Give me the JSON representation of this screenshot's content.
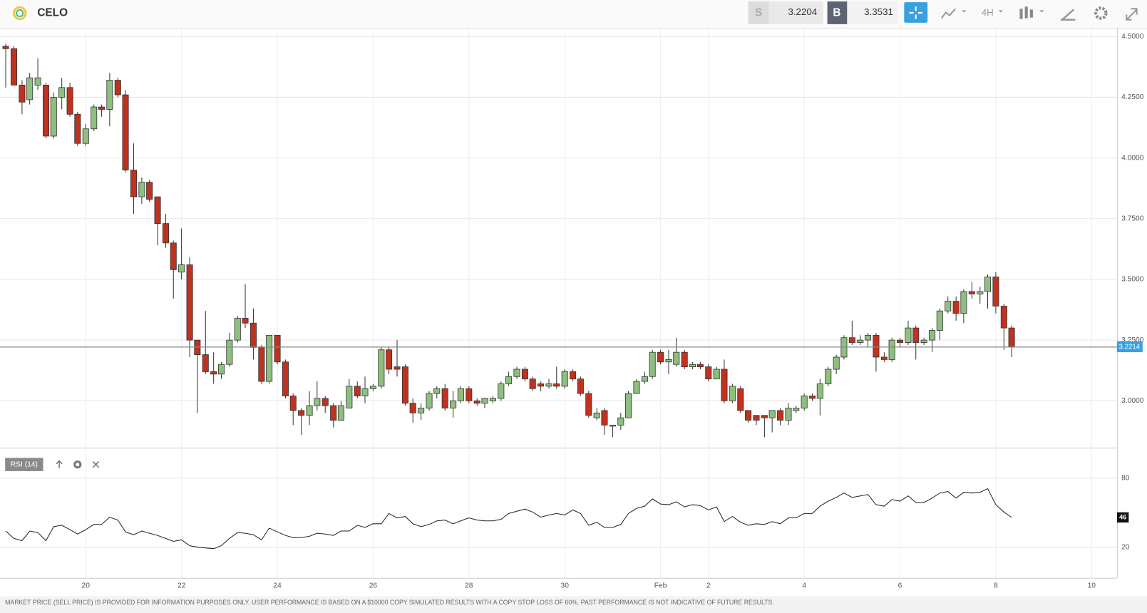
{
  "header": {
    "symbol": "CELO",
    "sell_label": "S",
    "sell": 3.2204,
    "buy_label": "B",
    "buy": 3.3531,
    "timeframe": "4H"
  },
  "chart_data": [
    {
      "type": "candlestick",
      "up_color": "#8dc07f",
      "down_color": "#c0321f",
      "x": [
        18.33,
        18.5,
        18.67,
        18.83,
        19,
        19.17,
        19.33,
        19.5,
        19.67,
        19.83,
        20,
        20.17,
        20.33,
        20.5,
        20.67,
        20.83,
        21,
        21.17,
        21.33,
        21.5,
        21.67,
        21.83,
        22,
        22.17,
        22.33,
        22.5,
        22.67,
        22.83,
        23,
        23.17,
        23.33,
        23.5,
        23.67,
        23.83,
        24,
        24.17,
        24.33,
        24.5,
        24.67,
        24.83,
        25,
        25.17,
        25.33,
        25.5,
        25.67,
        25.83,
        26,
        26.17,
        26.33,
        26.5,
        26.67,
        26.83,
        27,
        27.17,
        27.33,
        27.5,
        27.67,
        27.83,
        28,
        28.17,
        28.33,
        28.5,
        28.67,
        28.83,
        29,
        29.17,
        29.33,
        29.5,
        29.67,
        29.83,
        30,
        30.17,
        30.33,
        30.5,
        30.67,
        30.83,
        31,
        31.17,
        31.33,
        31.5,
        31.67,
        31.83,
        32,
        32.17,
        32.33,
        32.5,
        32.67,
        32.83,
        33,
        33.17,
        33.33,
        33.5,
        33.67,
        33.83,
        34,
        34.17,
        34.33,
        34.5,
        34.67,
        34.83,
        35,
        35.17,
        35.33,
        35.5,
        35.67,
        35.83,
        36,
        36.17,
        36.33,
        36.5,
        36.67,
        36.83,
        37,
        37.17,
        37.33,
        37.5,
        37.67,
        37.83,
        38,
        38.17,
        38.33,
        38.5,
        38.67,
        38.83,
        39,
        39.17,
        39.33
      ],
      "open": [
        4.46,
        4.45,
        4.3,
        4.24,
        4.3,
        4.3,
        4.09,
        4.25,
        4.29,
        4.18,
        4.06,
        4.12,
        4.21,
        4.2,
        4.32,
        4.26,
        3.95,
        3.84,
        3.9,
        3.84,
        3.73,
        3.65,
        3.53,
        3.56,
        3.25,
        3.19,
        3.12,
        3.11,
        3.15,
        3.25,
        3.34,
        3.32,
        3.22,
        3.08,
        3.27,
        3.16,
        3.02,
        2.96,
        2.94,
        2.98,
        3.01,
        2.98,
        2.92,
        2.97,
        3.06,
        3.02,
        3.05,
        3.06,
        3.21,
        3.14,
        3.14,
        2.99,
        2.95,
        2.97,
        3.03,
        3.05,
        2.97,
        3.0,
        3.05,
        3.0,
        2.99,
        3.0,
        3.01,
        3.07,
        3.1,
        3.13,
        3.09,
        3.07,
        3.06,
        3.07,
        3.06,
        3.12,
        3.09,
        3.03,
        2.93,
        2.96,
        2.9,
        2.9,
        2.93,
        3.03,
        3.08,
        3.1,
        3.2,
        3.16,
        3.15,
        3.2,
        3.14,
        3.15,
        3.14,
        3.09,
        3.13,
        3.0,
        3.05,
        2.96,
        2.94,
        2.94,
        2.93,
        2.96,
        2.92,
        2.96,
        2.97,
        3.02,
        3.01,
        3.07,
        3.13,
        3.18,
        3.26,
        3.24,
        3.25,
        3.27,
        3.18,
        3.17,
        3.25,
        3.24,
        3.3,
        3.24,
        3.25,
        3.29,
        3.37,
        3.41,
        3.36,
        3.45,
        3.44,
        3.45,
        3.51,
        3.39,
        3.3
      ],
      "high": [
        4.47,
        4.46,
        4.32,
        4.35,
        4.41,
        4.31,
        4.27,
        4.33,
        4.31,
        4.19,
        4.14,
        4.22,
        4.22,
        4.35,
        4.33,
        4.28,
        4.06,
        3.92,
        3.91,
        3.84,
        3.77,
        3.66,
        3.71,
        3.59,
        3.25,
        3.37,
        3.2,
        3.16,
        3.28,
        3.35,
        3.48,
        3.38,
        3.23,
        3.27,
        3.27,
        3.17,
        3.03,
        2.97,
        3.04,
        3.08,
        3.02,
        2.99,
        3.0,
        3.09,
        3.08,
        3.1,
        3.07,
        3.22,
        3.22,
        3.25,
        3.15,
        3.01,
        2.99,
        3.04,
        3.06,
        3.07,
        3.04,
        3.06,
        3.06,
        3.01,
        3.01,
        3.02,
        3.08,
        3.12,
        3.14,
        3.14,
        3.1,
        3.08,
        3.09,
        3.14,
        3.13,
        3.13,
        3.1,
        3.04,
        2.97,
        2.97,
        2.9,
        2.95,
        3.04,
        3.09,
        3.12,
        3.21,
        3.21,
        3.21,
        3.26,
        3.21,
        3.16,
        3.16,
        3.15,
        3.14,
        3.17,
        3.07,
        3.06,
        2.96,
        2.94,
        2.94,
        2.96,
        2.97,
        2.99,
        2.98,
        3.03,
        3.03,
        3.09,
        3.14,
        3.19,
        3.27,
        3.33,
        3.27,
        3.28,
        3.28,
        3.2,
        3.26,
        3.26,
        3.33,
        3.31,
        3.26,
        3.3,
        3.38,
        3.43,
        3.43,
        3.46,
        3.49,
        3.47,
        3.52,
        3.53,
        3.4,
        3.31
      ],
      "low": [
        4.29,
        4.3,
        4.18,
        4.22,
        4.28,
        4.08,
        4.08,
        4.2,
        4.17,
        4.05,
        4.05,
        4.11,
        4.17,
        4.13,
        4.25,
        3.94,
        3.77,
        3.81,
        3.82,
        3.64,
        3.63,
        3.42,
        3.5,
        3.18,
        2.95,
        3.11,
        3.07,
        3.09,
        3.14,
        3.24,
        3.3,
        3.17,
        3.07,
        3.07,
        3.15,
        3.01,
        2.9,
        2.86,
        2.9,
        2.96,
        2.95,
        2.89,
        2.92,
        2.97,
        3.01,
        2.99,
        3.04,
        3.05,
        3.11,
        3.1,
        2.98,
        2.91,
        2.92,
        2.96,
        3.01,
        2.96,
        2.93,
        2.99,
        2.99,
        2.98,
        2.97,
        2.99,
        3.0,
        3.06,
        3.09,
        3.08,
        3.04,
        3.04,
        3.05,
        3.05,
        3.05,
        3.08,
        3.02,
        2.93,
        2.92,
        2.86,
        2.85,
        2.88,
        2.93,
        3.03,
        3.07,
        3.09,
        3.15,
        3.11,
        3.14,
        3.13,
        3.13,
        3.13,
        3.08,
        3.09,
        2.99,
        2.99,
        2.95,
        2.91,
        2.9,
        2.85,
        2.87,
        2.9,
        2.9,
        2.95,
        2.96,
        3.0,
        2.94,
        3.06,
        3.11,
        3.17,
        3.23,
        3.23,
        3.22,
        3.12,
        3.16,
        3.16,
        3.22,
        3.23,
        3.17,
        3.23,
        3.2,
        3.25,
        3.36,
        3.33,
        3.32,
        3.42,
        3.4,
        3.38,
        3.36,
        3.21,
        3.18
      ],
      "close": [
        4.45,
        4.3,
        4.23,
        4.33,
        4.33,
        4.09,
        4.25,
        4.29,
        4.18,
        4.06,
        4.12,
        4.21,
        4.2,
        4.32,
        4.26,
        3.95,
        3.84,
        3.9,
        3.83,
        3.73,
        3.65,
        3.54,
        3.56,
        3.25,
        3.19,
        3.12,
        3.11,
        3.15,
        3.25,
        3.34,
        3.32,
        3.22,
        3.08,
        3.27,
        3.16,
        3.02,
        2.96,
        2.94,
        2.98,
        3.01,
        2.98,
        2.92,
        2.98,
        3.06,
        3.02,
        3.05,
        3.06,
        3.21,
        3.13,
        3.13,
        2.99,
        2.95,
        2.97,
        3.03,
        3.05,
        2.97,
        3.0,
        3.05,
        3.0,
        2.99,
        3.01,
        3.01,
        3.07,
        3.1,
        3.13,
        3.09,
        3.05,
        3.06,
        3.07,
        3.06,
        3.12,
        3.09,
        3.03,
        2.94,
        2.95,
        2.9,
        2.9,
        2.93,
        3.03,
        3.08,
        3.1,
        3.2,
        3.16,
        3.17,
        3.2,
        3.14,
        3.15,
        3.14,
        3.09,
        3.13,
        3.0,
        3.06,
        2.96,
        2.92,
        2.92,
        2.93,
        2.96,
        2.92,
        2.97,
        2.97,
        3.02,
        3.01,
        3.07,
        3.13,
        3.18,
        3.26,
        3.24,
        3.25,
        3.27,
        3.18,
        3.17,
        3.25,
        3.24,
        3.3,
        3.24,
        3.25,
        3.29,
        3.37,
        3.41,
        3.36,
        3.45,
        3.44,
        3.45,
        3.51,
        3.39,
        3.3,
        3.2214
      ],
      "xlim": [
        18.21,
        41.53
      ],
      "xticks": [
        20,
        22,
        24,
        26,
        28,
        30,
        {
          "value": 32,
          "label": "Feb"
        },
        {
          "value": 33,
          "label": "2"
        },
        {
          "value": 35,
          "label": "4"
        },
        {
          "value": 37,
          "label": "6"
        },
        {
          "value": 39,
          "label": "8"
        },
        {
          "value": 41,
          "label": "10"
        }
      ],
      "ylim": [
        2.807,
        4.53
      ],
      "yticks": [
        {
          "value": 4.5,
          "label": "4.5000"
        },
        {
          "value": 4.25,
          "label": "4.2500"
        },
        {
          "value": 4.0,
          "label": "4.0000"
        },
        {
          "value": 3.75,
          "label": "3.7500"
        },
        {
          "value": 3.5,
          "label": "3.5000"
        },
        {
          "value": 3.25,
          "label": "3.2500"
        },
        {
          "value": 3.0,
          "label": "3.0000"
        }
      ],
      "grid": true
    },
    {
      "type": "line",
      "ylim": [
        0,
        100
      ],
      "yticks": [
        20,
        80
      ],
      "grid": true,
      "series": [
        {
          "name": "RSI (14)",
          "color": "#222222",
          "values": [
            34.2,
            27.8,
            25.9,
            34.2,
            32.9,
            25.9,
            38.0,
            39.2,
            35.4,
            31.6,
            35.4,
            39.9,
            39.9,
            46.2,
            43.7,
            33.5,
            31.0,
            34.2,
            32.3,
            30.4,
            27.8,
            25.3,
            26.6,
            21.5,
            20.3,
            19.6,
            19.0,
            21.5,
            27.8,
            32.9,
            32.3,
            31.0,
            26.6,
            36.7,
            33.5,
            30.4,
            28.5,
            28.5,
            29.7,
            32.3,
            31.6,
            30.4,
            34.2,
            34.2,
            39.2,
            37.3,
            40.5,
            40.5,
            49.4,
            45.6,
            46.8,
            40.5,
            38.0,
            39.9,
            43.0,
            43.7,
            40.5,
            43.0,
            45.6,
            43.7,
            43.0,
            43.0,
            44.3,
            49.4,
            51.3,
            53.2,
            50.6,
            46.2,
            48.1,
            49.4,
            48.1,
            52.5,
            49.4,
            39.2,
            41.8,
            37.3,
            37.3,
            39.9,
            49.4,
            53.8,
            55.7,
            62.0,
            57.6,
            57.0,
            59.5,
            55.1,
            57.0,
            56.3,
            52.5,
            55.1,
            42.4,
            46.8,
            41.8,
            39.2,
            40.5,
            39.9,
            42.4,
            40.5,
            45.6,
            45.6,
            49.4,
            49.4,
            55.7,
            60.1,
            63.3,
            67.1,
            63.3,
            64.6,
            65.8,
            57.0,
            55.7,
            61.4,
            60.1,
            64.6,
            58.9,
            58.9,
            62.7,
            67.1,
            68.4,
            62.7,
            67.7,
            67.1,
            67.7,
            70.9,
            57.0,
            50.6,
            46
          ]
        }
      ]
    }
  ],
  "footer": {
    "disclaimer": "MARKET PRICE (SELL PRICE) IS PROVIDED FOR INFORMATION PURPOSES ONLY. USER PERFORMANCE IS BASED ON A $10000 COPY SIMULATED RESULTS WITH A COPY STOP LOSS OF 60%. PAST PERFORMANCE IS NOT INDICATIVE OF FUTURE RESULTS."
  }
}
